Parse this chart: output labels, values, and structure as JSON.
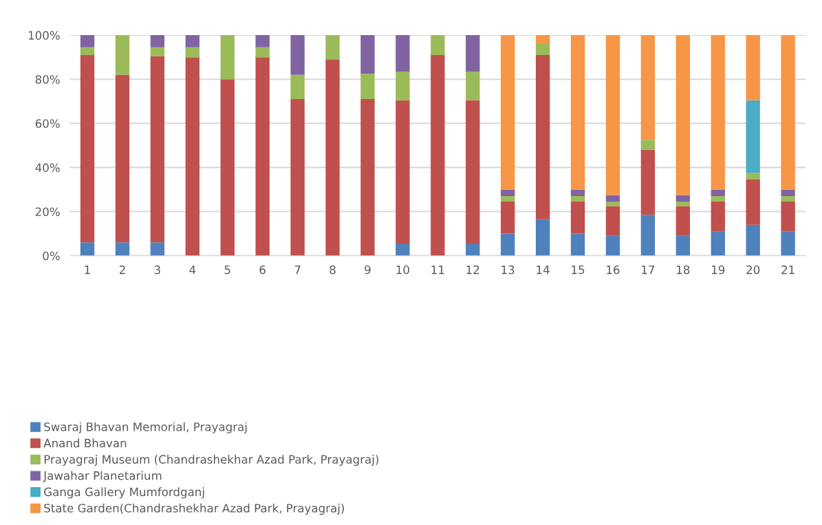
{
  "chart_data": {
    "type": "bar",
    "stacked": true,
    "categories": [
      "1",
      "2",
      "3",
      "4",
      "5",
      "6",
      "7",
      "8",
      "9",
      "10",
      "11",
      "12",
      "13",
      "14",
      "15",
      "16",
      "17",
      "18",
      "19",
      "20",
      "21"
    ],
    "series": [
      {
        "name": "Swaraj Bhavan Memorial, Prayagraj",
        "color": "#4f81bd",
        "values": [
          6,
          6,
          6,
          0,
          0,
          0,
          0,
          0,
          0,
          5.5,
          0,
          5.5,
          10,
          16.5,
          10,
          9,
          18.5,
          9,
          11,
          14,
          11
        ]
      },
      {
        "name": "Anand Bhavan",
        "color": "#c0504d",
        "values": [
          85,
          76,
          84.5,
          90,
          80,
          90,
          71,
          89,
          71,
          65,
          91,
          65,
          14.5,
          74.5,
          14.5,
          13.5,
          29.5,
          13.5,
          13.5,
          20.5,
          13.5
        ]
      },
      {
        "name": "Prayagraj Museum (Chandrashekhar Azad Park, Prayagraj)",
        "color": "#9bbb59",
        "values": [
          3.5,
          18,
          4,
          4.5,
          20,
          4.5,
          11,
          11,
          11.5,
          13,
          9,
          13,
          2.5,
          5,
          2.5,
          2,
          4.5,
          2,
          2.5,
          3,
          2.5
        ]
      },
      {
        "name": "Jawahar Planetarium",
        "color": "#8064a2",
        "values": [
          5.5,
          0,
          5.5,
          5.5,
          0,
          5.5,
          18,
          0,
          17.5,
          16.5,
          0,
          16.5,
          3,
          0,
          3,
          3,
          0,
          3,
          3,
          0,
          3
        ]
      },
      {
        "name": "Ganga Gallery Mumfordganj",
        "color": "#4bacc6",
        "values": [
          0,
          0,
          0,
          0,
          0,
          0,
          0,
          0,
          0,
          0,
          0,
          0,
          0,
          0,
          0,
          0,
          0,
          0,
          0,
          33,
          0
        ]
      },
      {
        "name": "State Garden(Chandrashekhar Azad Park, Prayagraj)",
        "color": "#f79646",
        "values": [
          0,
          0,
          0,
          0,
          0,
          0,
          0,
          0,
          0,
          0,
          0,
          0,
          70,
          4,
          70,
          72.5,
          47.5,
          72.5,
          70,
          29.5,
          70
        ]
      }
    ],
    "ylim": [
      0,
      100
    ],
    "yticks": [
      {
        "value": 0,
        "label": "0%"
      },
      {
        "value": 20,
        "label": "20%"
      },
      {
        "value": 40,
        "label": "40%"
      },
      {
        "value": 60,
        "label": "60%"
      },
      {
        "value": 80,
        "label": "80%"
      },
      {
        "value": 100,
        "label": "100%"
      }
    ],
    "grid": "y",
    "legend": "bottom"
  }
}
